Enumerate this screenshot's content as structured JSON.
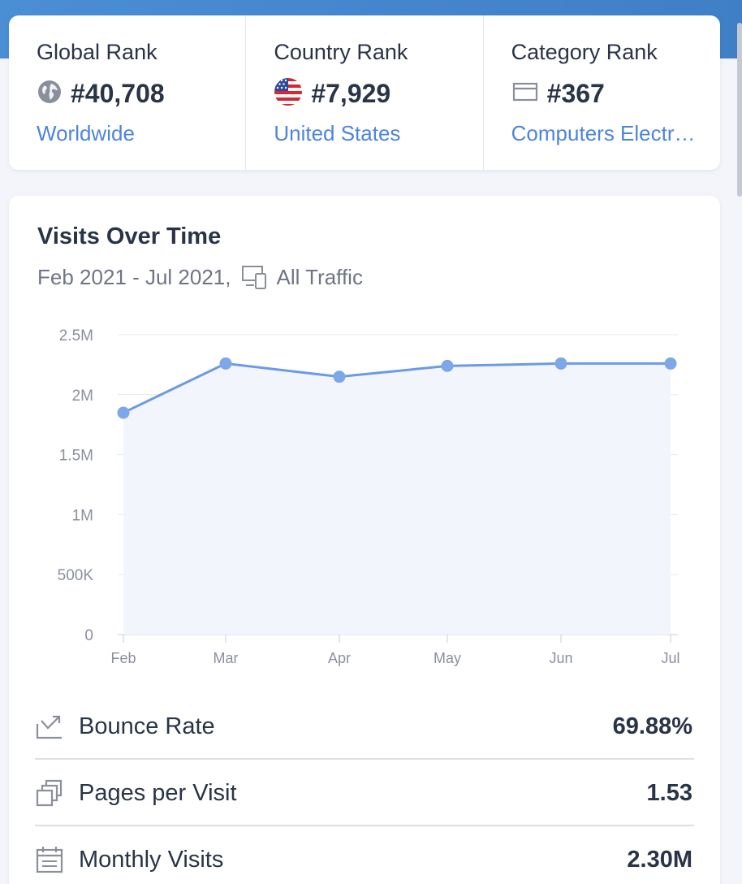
{
  "ranks": [
    {
      "title": "Global Rank",
      "value": "#40,708",
      "link": "Worldwide",
      "icon": "globe-icon"
    },
    {
      "title": "Country Rank",
      "value": "#7,929",
      "link": "United States",
      "icon": "us-flag-icon"
    },
    {
      "title": "Category Rank",
      "value": "#367",
      "link": "Computers Electr…",
      "icon": "category-icon"
    }
  ],
  "visits": {
    "title": "Visits Over Time",
    "date_range": "Feb 2021 - Jul 2021,",
    "traffic": "All Traffic"
  },
  "chart_data": {
    "type": "area",
    "title": "Visits Over Time",
    "categories": [
      "Feb",
      "Mar",
      "Apr",
      "May",
      "Jun",
      "Jul"
    ],
    "values": [
      1850000,
      2260000,
      2150000,
      2240000,
      2260000,
      2260000
    ],
    "ylim": [
      0,
      2500000
    ],
    "yticks": [
      0,
      500000,
      1000000,
      1500000,
      2000000,
      2500000
    ],
    "ytick_labels": [
      "0",
      "500K",
      "1M",
      "1.5M",
      "2M",
      "2.5M"
    ],
    "grid": true,
    "line_color": "#6b9ae6",
    "fill_color": "#f3f5fd"
  },
  "metrics": [
    {
      "label": "Bounce Rate",
      "value": "69.88%",
      "icon": "bounce-icon"
    },
    {
      "label": "Pages per Visit",
      "value": "1.53",
      "icon": "pages-icon"
    },
    {
      "label": "Monthly Visits",
      "value": "2.30M",
      "icon": "calendar-icon"
    }
  ],
  "colors": {
    "accent": "#4d84e0",
    "header_band": "#4a8ed4",
    "text": "#2a3447"
  }
}
